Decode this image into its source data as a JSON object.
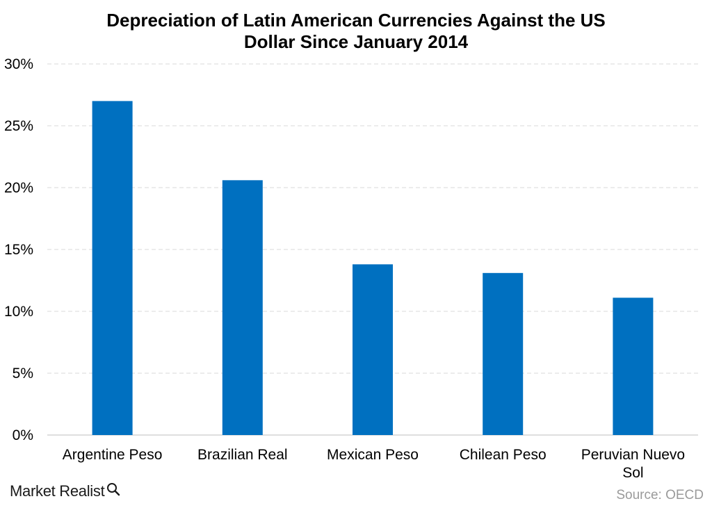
{
  "chart_data": {
    "type": "bar",
    "title_lines": [
      "Depreciation of Latin American Currencies Against the US",
      "Dollar Since January 2014"
    ],
    "categories": [
      "Argentine Peso",
      "Brazilian Real",
      "Mexican Peso",
      "Chilean Peso",
      "Peruvian Nuevo Sol"
    ],
    "values": [
      27.0,
      20.6,
      13.8,
      13.1,
      11.1
    ],
    "ylim": [
      0,
      30
    ],
    "yticks": [
      0,
      5,
      10,
      15,
      20,
      25,
      30
    ],
    "ytick_labels": [
      "0%",
      "5%",
      "10%",
      "15%",
      "20%",
      "25%",
      "30%"
    ],
    "grid": true,
    "bar_color": "#0070C0",
    "grid_color": "#D9D9D9"
  },
  "branding": {
    "logo_text": "Market Realist",
    "logo_icon": "magnifier-q-icon"
  },
  "source": "Source: OECD"
}
